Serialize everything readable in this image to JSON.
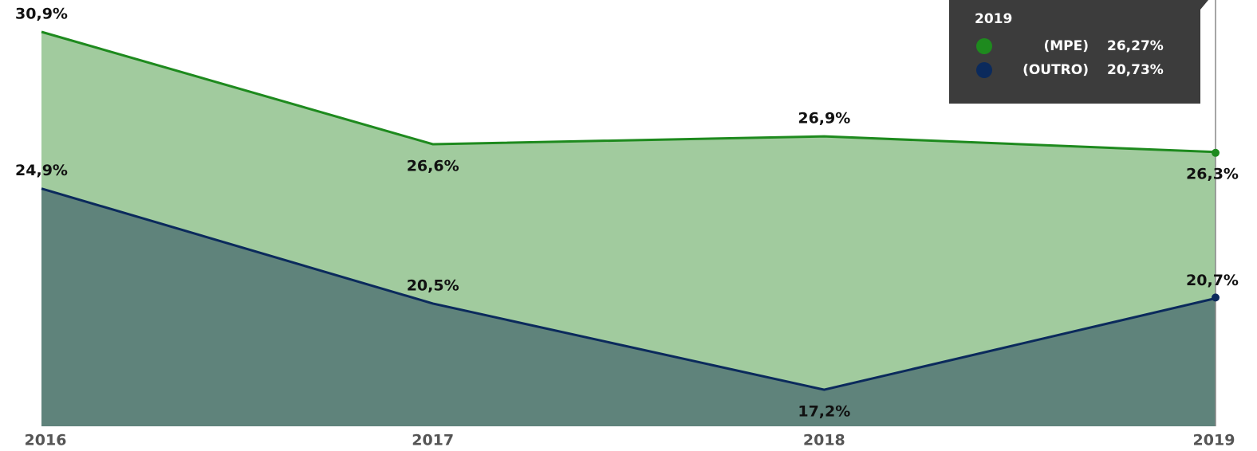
{
  "chart_data": {
    "type": "area",
    "categories": [
      "2016",
      "2017",
      "2018",
      "2019"
    ],
    "ylim": [
      15.8,
      30.9
    ],
    "series": [
      {
        "name": "(MPE)",
        "color": "#1e8a1e",
        "fill": "#a1cb9e",
        "values": [
          30.9,
          26.6,
          26.9,
          26.3
        ],
        "value_labels": [
          "30,9%",
          "26,6%",
          "26,9%",
          "26,3%"
        ]
      },
      {
        "name": "(OUTRO)",
        "color": "#0b2a5c",
        "fill": "#5f837b",
        "values": [
          24.9,
          20.5,
          17.2,
          20.7
        ],
        "value_labels": [
          "24,9%",
          "20,5%",
          "17,2%",
          "20,7%"
        ]
      }
    ],
    "tooltip": {
      "title": "2019",
      "values": [
        26.27,
        20.73
      ],
      "value_labels": [
        "26,27%",
        "20,73%"
      ]
    }
  }
}
